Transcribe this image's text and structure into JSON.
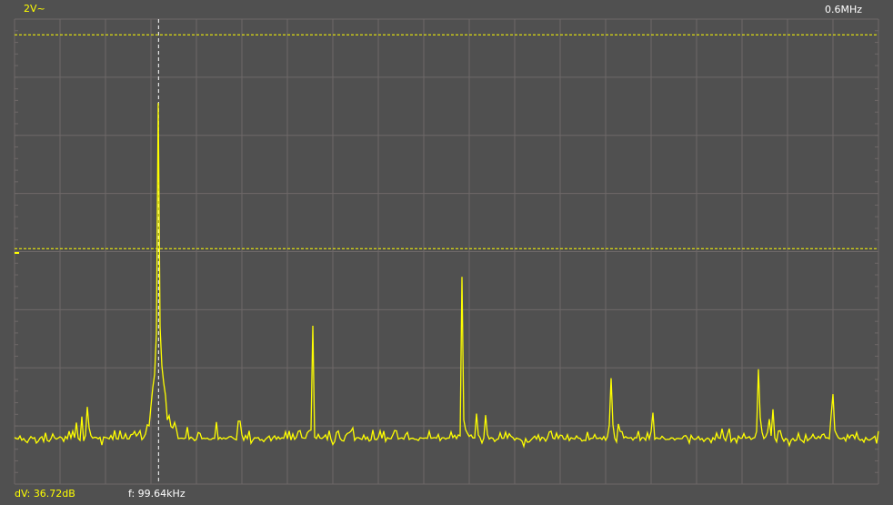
{
  "channel": {
    "scale_label": "2V~",
    "color": "#ffff00"
  },
  "span_label": "0.6MHz",
  "cursor_readout": {
    "dv_label": "dV: 36.72dB",
    "freq_label": "f: 99.64kHz"
  },
  "chart_data": {
    "type": "line",
    "title": "",
    "xlabel": "",
    "ylabel": "",
    "xlim": [
      0,
      600
    ],
    "ylim": [
      0,
      8
    ],
    "grid": true,
    "background": "#505050",
    "grid_color": "#6e6868",
    "trace_color": "#ffff00",
    "x_divisions": 19,
    "y_divisions": 8,
    "noise_floor": 0.65,
    "peaks": [
      {
        "x": 51,
        "y": 1.64
      },
      {
        "x": 100,
        "y": 7.73
      },
      {
        "x": 156,
        "y": 1.61
      },
      {
        "x": 207,
        "y": 2.83
      },
      {
        "x": 311,
        "y": 4.0
      },
      {
        "x": 414,
        "y": 2.08
      },
      {
        "x": 517,
        "y": 2.39
      },
      {
        "x": 568,
        "y": 1.93
      }
    ],
    "cursors": {
      "vertical_x": 100,
      "horizontal_y": [
        7.73,
        4.05
      ]
    }
  }
}
